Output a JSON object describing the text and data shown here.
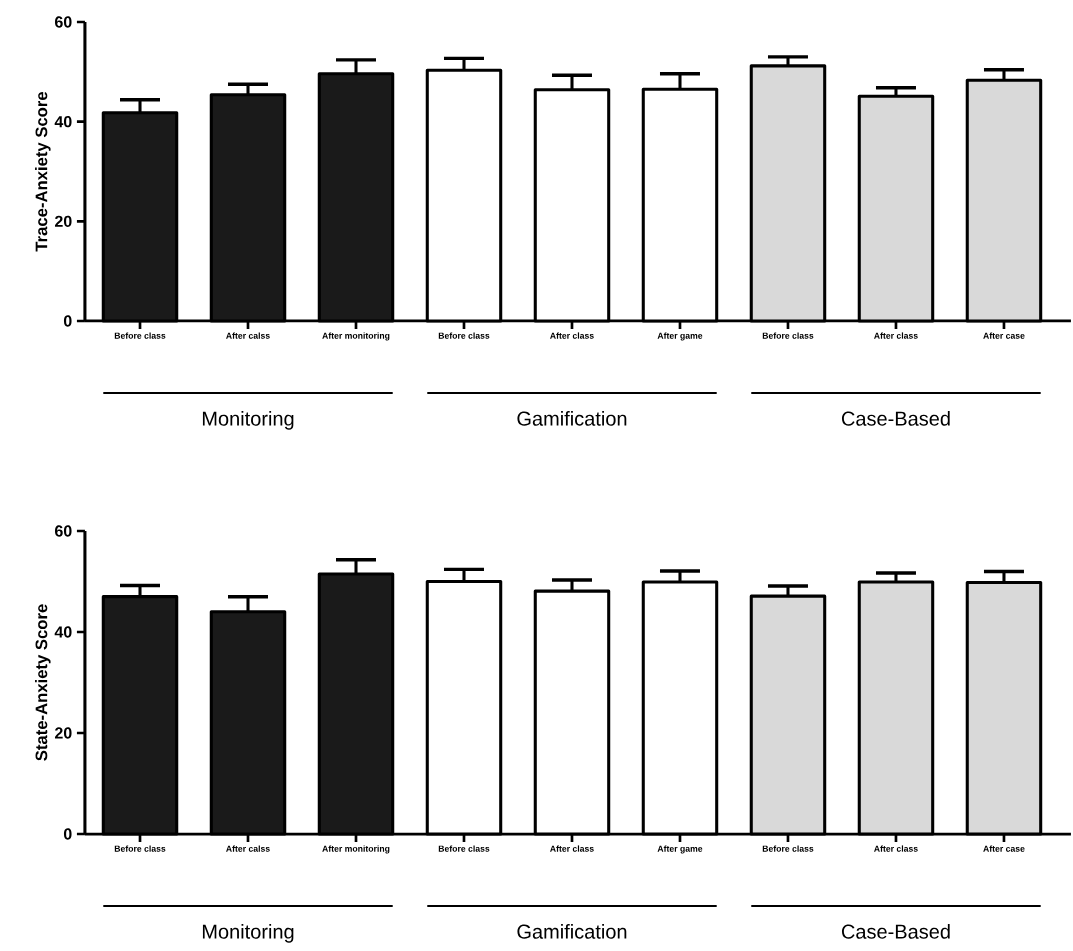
{
  "chart_data": [
    {
      "type": "bar",
      "ylabel": "Trace-Anxiety Score",
      "categories": [
        "Before class",
        "After calss",
        "After monitoring",
        "Before class",
        "After class",
        "After game",
        "Before class",
        "After class",
        "After case"
      ],
      "values": [
        41.8,
        45.4,
        49.6,
        50.3,
        46.4,
        46.5,
        51.2,
        45.1,
        48.3
      ],
      "errors": [
        [
          41.8,
          44.4
        ],
        [
          45.4,
          47.5
        ],
        [
          49.6,
          52.4
        ],
        [
          50.3,
          52.7
        ],
        [
          46.4,
          49.3
        ],
        [
          46.5,
          49.6
        ],
        [
          51.2,
          53.0
        ],
        [
          45.1,
          46.8
        ],
        [
          48.3,
          50.4
        ]
      ],
      "colors": [
        "#1a1a1a",
        "#1a1a1a",
        "#1a1a1a",
        "#ffffff",
        "#ffffff",
        "#ffffff",
        "#d9d9d9",
        "#d9d9d9",
        "#d9d9d9"
      ],
      "ylim": [
        0,
        60
      ],
      "yticks": [
        0,
        20,
        40,
        60
      ],
      "annotations": [
        "Monitoring",
        "Gamification",
        "Case-Based"
      ]
    },
    {
      "type": "bar",
      "ylabel": "State-Anxiety Score",
      "categories": [
        "Before class",
        "After calss",
        "After monitoring",
        "Before class",
        "After class",
        "After game",
        "Before class",
        "After class",
        "After case"
      ],
      "values": [
        47.0,
        44.0,
        51.5,
        50.0,
        48.1,
        49.9,
        47.1,
        49.9,
        49.8
      ],
      "errors": [
        [
          47.0,
          49.2
        ],
        [
          44.0,
          47.0
        ],
        [
          51.5,
          54.3
        ],
        [
          50.0,
          52.4
        ],
        [
          48.1,
          50.3
        ],
        [
          49.9,
          52.1
        ],
        [
          47.1,
          49.1
        ],
        [
          49.9,
          51.7
        ],
        [
          49.8,
          52.0
        ]
      ],
      "colors": [
        "#1a1a1a",
        "#1a1a1a",
        "#1a1a1a",
        "#ffffff",
        "#ffffff",
        "#ffffff",
        "#d9d9d9",
        "#d9d9d9",
        "#d9d9d9"
      ],
      "ylim": [
        0,
        60
      ],
      "yticks": [
        0,
        20,
        40,
        60
      ],
      "annotations": [
        "Monitoring",
        "Gamification",
        "Case-Based"
      ]
    }
  ]
}
